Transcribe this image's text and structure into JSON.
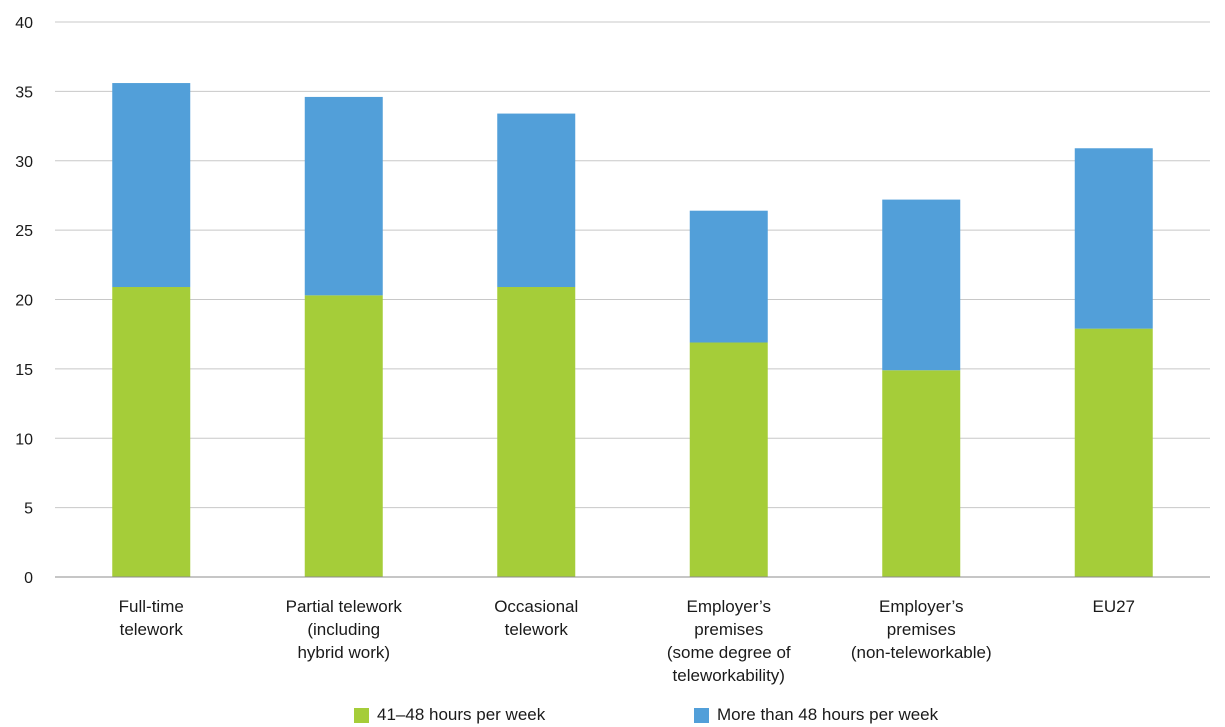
{
  "chart_data": {
    "type": "bar",
    "stacked": true,
    "title": "",
    "xlabel": "",
    "ylabel": "",
    "ylim": [
      0,
      40
    ],
    "yticks": [
      0,
      5,
      10,
      15,
      20,
      25,
      30,
      35,
      40
    ],
    "grid": true,
    "legend_position": "bottom",
    "categories": [
      [
        "Full-time",
        "telework"
      ],
      [
        "Partial telework",
        "(including",
        "hybrid work)"
      ],
      [
        "Occasional",
        "telework"
      ],
      [
        "Employer’s",
        "premises",
        "(some degree of",
        "teleworkability)"
      ],
      [
        "Employer’s",
        "premises",
        "(non-teleworkable)"
      ],
      [
        "EU27"
      ]
    ],
    "series": [
      {
        "name": "41–48 hours per week",
        "color": "#a5cd39",
        "values": [
          20.9,
          20.3,
          20.9,
          16.9,
          14.9,
          17.9
        ]
      },
      {
        "name": "More than 48 hours per week",
        "color": "#529fd9",
        "values": [
          14.7,
          14.3,
          12.5,
          9.5,
          12.3,
          13.0
        ]
      }
    ]
  }
}
